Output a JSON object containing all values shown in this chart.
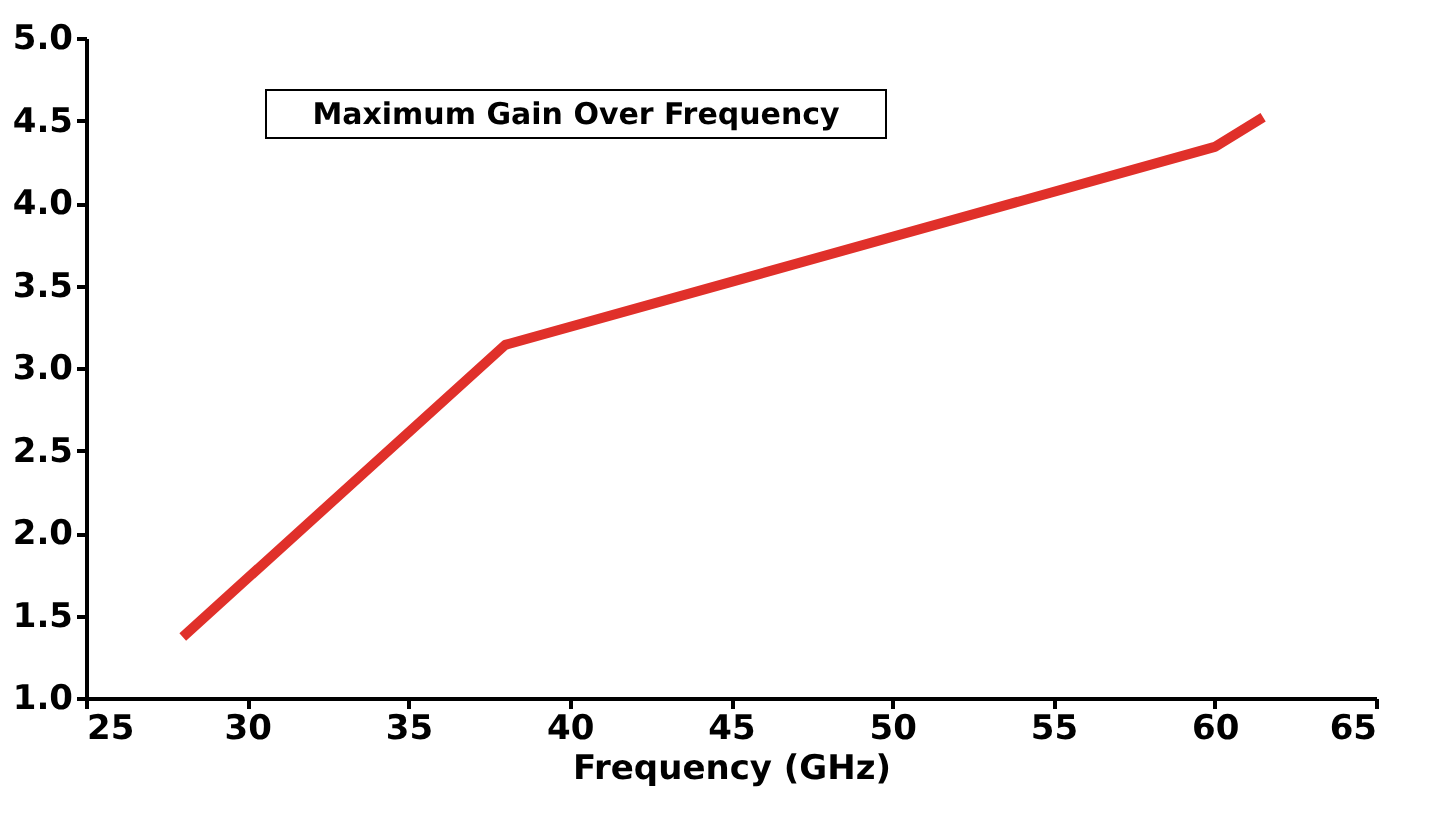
{
  "chart_data": {
    "type": "line",
    "title": "Maximum Gain Over Frequency",
    "xlabel": "Frequency (GHz)",
    "x": [
      28,
      38,
      60,
      61.5
    ],
    "series": [
      {
        "color": "#e0302a",
        "values": [
          1.37,
          3.14,
          4.34,
          4.52
        ]
      }
    ],
    "xlim": [
      25,
      65
    ],
    "xticks": [
      25,
      30,
      35,
      40,
      45,
      50,
      55,
      60,
      65
    ],
    "ylim": [
      1.0,
      5.0
    ],
    "yticks": [
      {
        "value": 1.0,
        "label": "1.0"
      },
      1.5,
      {
        "value": 2.0,
        "label": "2.0"
      },
      2.5,
      {
        "value": 3.0,
        "label": "3.0"
      },
      3.5,
      {
        "value": 4.0,
        "label": "4.0"
      },
      4.5,
      {
        "value": 5.0,
        "label": "5.0"
      }
    ],
    "grid": false,
    "marker": "none",
    "line_style": "solid"
  }
}
